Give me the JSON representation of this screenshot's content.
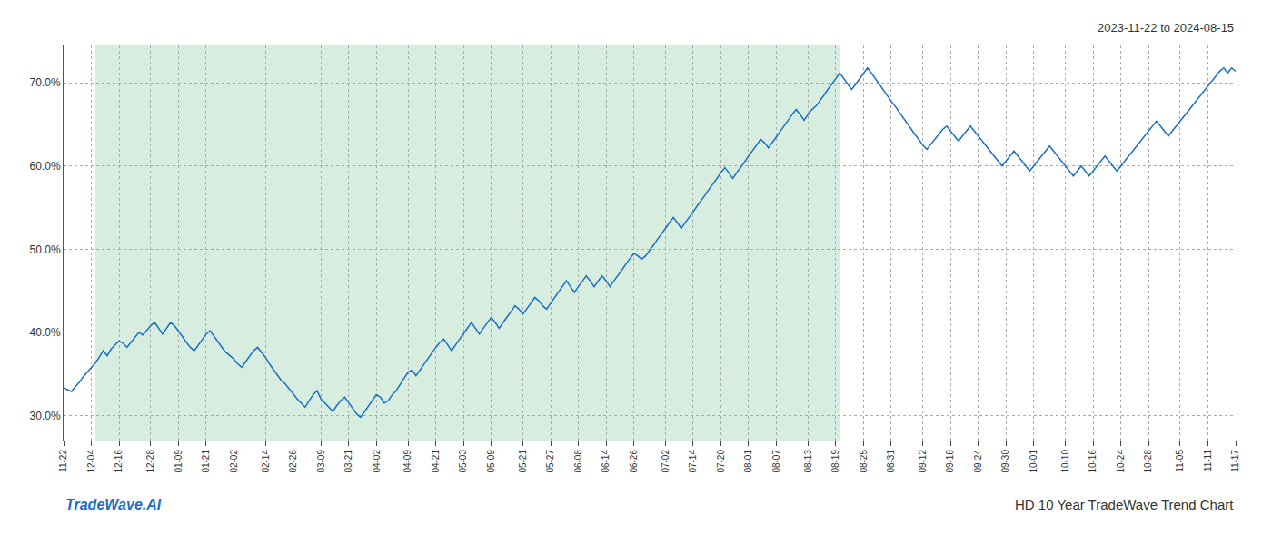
{
  "chart_data": {
    "type": "line",
    "title": "HD 10 Year TradeWave Trend Chart",
    "subtitle": "2023-11-22 to 2024-08-15",
    "annotations": [
      "TradeWave.AI"
    ],
    "color": "#1a6fc4",
    "grid": true,
    "ylim": [
      0.27,
      0.745
    ],
    "yticks": [
      {
        "value": 0.3,
        "label": "30.0%"
      },
      {
        "value": 0.4,
        "label": "40.0%"
      },
      {
        "value": 0.5,
        "label": "50.0%"
      },
      {
        "value": 0.6,
        "label": "60.0%"
      },
      {
        "value": 0.7,
        "label": "70.0%"
      }
    ],
    "shaded": {
      "x_start": 8,
      "x_end": 196,
      "color": "#d6ede0"
    },
    "categories": [
      "11-22",
      null,
      null,
      null,
      null,
      null,
      null,
      "12-04",
      null,
      null,
      null,
      null,
      null,
      null,
      "12-16",
      null,
      null,
      null,
      null,
      null,
      null,
      null,
      "12-28",
      null,
      null,
      null,
      null,
      null,
      null,
      "01-09",
      null,
      null,
      null,
      null,
      null,
      null,
      "01-21",
      null,
      null,
      null,
      null,
      null,
      null,
      "02-02",
      null,
      null,
      null,
      null,
      null,
      null,
      null,
      "02-14",
      null,
      null,
      null,
      null,
      null,
      null,
      "02-26",
      null,
      null,
      null,
      null,
      null,
      null,
      "03-09",
      null,
      null,
      null,
      null,
      null,
      null,
      "03-21",
      null,
      null,
      null,
      null,
      null,
      null,
      "04-02",
      null,
      null,
      null,
      null,
      null,
      null,
      null,
      "04-09",
      null,
      null,
      null,
      null,
      null,
      null,
      "04-21",
      null,
      null,
      null,
      null,
      null,
      null,
      "05-03",
      null,
      null,
      null,
      null,
      null,
      null,
      "05-09",
      null,
      null,
      null,
      null,
      null,
      null,
      null,
      "05-21",
      null,
      null,
      null,
      null,
      null,
      null,
      "05-27",
      null,
      null,
      null,
      null,
      null,
      null,
      "06-08",
      null,
      null,
      null,
      null,
      null,
      null,
      "06-14",
      null,
      null,
      null,
      null,
      null,
      null,
      "06-26",
      null,
      null,
      null,
      null,
      null,
      null,
      null,
      "07-02",
      null,
      null,
      null,
      null,
      null,
      null,
      "07-14",
      null,
      null,
      null,
      null,
      null,
      null,
      "07-20",
      null,
      null,
      null,
      null,
      null,
      null,
      "08-01",
      null,
      null,
      null,
      null,
      null,
      null,
      "08-07",
      null,
      null,
      null,
      null,
      null,
      null,
      null,
      "08-13",
      null,
      null,
      null,
      null,
      null,
      null,
      "08-19",
      null,
      null,
      null,
      null,
      null,
      null,
      "08-25",
      null,
      null,
      null,
      null,
      null,
      null,
      "08-31",
      null,
      null,
      null,
      null,
      null,
      null,
      null,
      "09-12",
      null,
      null,
      null,
      null,
      null,
      null,
      "09-18",
      null,
      null,
      null,
      null,
      null,
      null,
      "09-24",
      null,
      null,
      null,
      null,
      null,
      null,
      "09-30",
      null,
      null,
      null,
      null,
      null,
      null,
      "10-01",
      null,
      null,
      null,
      null,
      null,
      null,
      null,
      "10-10",
      null,
      null,
      null,
      null,
      null,
      null,
      "10-16",
      null,
      null,
      null,
      null,
      null,
      null,
      "10-24",
      null,
      null,
      null,
      null,
      null,
      null,
      "10-28",
      null,
      null,
      null,
      null,
      null,
      null,
      null,
      "11-05",
      null,
      null,
      null,
      null,
      null,
      null,
      "11-11",
      null,
      null,
      null,
      null,
      null,
      null,
      "11-17"
    ],
    "values": [
      0.333,
      0.331,
      0.329,
      0.335,
      0.34,
      0.347,
      0.352,
      0.358,
      0.363,
      0.37,
      0.378,
      0.372,
      0.38,
      0.385,
      0.39,
      0.387,
      0.382,
      0.388,
      0.394,
      0.4,
      0.397,
      0.403,
      0.408,
      0.412,
      0.405,
      0.398,
      0.405,
      0.412,
      0.408,
      0.402,
      0.395,
      0.388,
      0.382,
      0.378,
      0.385,
      0.392,
      0.398,
      0.402,
      0.395,
      0.388,
      0.382,
      0.376,
      0.372,
      0.368,
      0.362,
      0.358,
      0.365,
      0.372,
      0.378,
      0.382,
      0.376,
      0.37,
      0.362,
      0.355,
      0.348,
      0.342,
      0.338,
      0.332,
      0.325,
      0.32,
      0.315,
      0.31,
      0.318,
      0.325,
      0.33,
      0.32,
      0.315,
      0.31,
      0.305,
      0.312,
      0.318,
      0.322,
      0.315,
      0.308,
      0.302,
      0.298,
      0.305,
      0.312,
      0.318,
      0.325,
      0.322,
      0.315,
      0.318,
      0.325,
      0.33,
      0.338,
      0.345,
      0.352,
      0.355,
      0.348,
      0.355,
      0.362,
      0.368,
      0.375,
      0.382,
      0.388,
      0.392,
      0.385,
      0.378,
      0.385,
      0.392,
      0.398,
      0.405,
      0.412,
      0.405,
      0.398,
      0.405,
      0.412,
      0.418,
      0.412,
      0.405,
      0.412,
      0.418,
      0.425,
      0.432,
      0.428,
      0.422,
      0.428,
      0.435,
      0.442,
      0.438,
      0.432,
      0.428,
      0.435,
      0.442,
      0.448,
      0.455,
      0.462,
      0.455,
      0.448,
      0.455,
      0.462,
      0.468,
      0.462,
      0.455,
      0.462,
      0.468,
      0.462,
      0.455,
      0.462,
      0.468,
      0.475,
      0.482,
      0.488,
      0.495,
      0.492,
      0.488,
      0.492,
      0.498,
      0.505,
      0.512,
      0.518,
      0.525,
      0.532,
      0.538,
      0.532,
      0.525,
      0.532,
      0.538,
      0.545,
      0.552,
      0.558,
      0.565,
      0.572,
      0.578,
      0.585,
      0.592,
      0.598,
      0.592,
      0.585,
      0.592,
      0.598,
      0.605,
      0.612,
      0.618,
      0.625,
      0.632,
      0.628,
      0.622,
      0.628,
      0.635,
      0.642,
      0.648,
      0.655,
      0.662,
      0.668,
      0.662,
      0.655,
      0.662,
      0.668,
      0.672,
      0.678,
      0.685,
      0.692,
      0.698,
      0.705,
      0.712,
      0.705,
      0.698,
      0.692,
      0.698,
      0.705,
      0.712,
      0.718,
      0.712,
      0.705,
      0.698,
      0.692,
      0.685,
      0.678,
      0.672,
      0.665,
      0.658,
      0.652,
      0.645,
      0.638,
      0.632,
      0.625,
      0.62,
      0.626,
      0.632,
      0.638,
      0.644,
      0.648,
      0.642,
      0.636,
      0.63,
      0.636,
      0.642,
      0.648,
      0.642,
      0.636,
      0.63,
      0.624,
      0.618,
      0.612,
      0.606,
      0.6,
      0.606,
      0.612,
      0.618,
      0.612,
      0.606,
      0.6,
      0.594,
      0.6,
      0.606,
      0.612,
      0.618,
      0.624,
      0.618,
      0.612,
      0.606,
      0.6,
      0.594,
      0.588,
      0.594,
      0.6,
      0.594,
      0.588,
      0.594,
      0.6,
      0.606,
      0.612,
      0.606,
      0.6,
      0.594,
      0.6,
      0.606,
      0.612,
      0.618,
      0.624,
      0.63,
      0.636,
      0.642,
      0.648,
      0.654,
      0.648,
      0.642,
      0.636,
      0.642,
      0.648,
      0.654,
      0.66,
      0.666,
      0.672,
      0.678,
      0.684,
      0.69,
      0.696,
      0.702,
      0.708,
      0.714,
      0.718,
      0.712,
      0.718,
      0.714
    ]
  }
}
